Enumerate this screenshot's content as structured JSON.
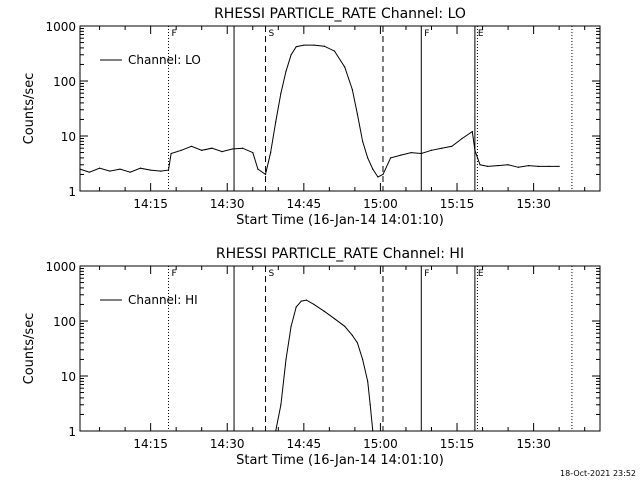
{
  "chart_data": [
    {
      "type": "line",
      "title": "RHESSI PARTICLE_RATE Channel: LO",
      "xlabel": "Start Time (16-Jan-14 14:01:10)",
      "ylabel": "Counts/sec",
      "y_scale": "log",
      "ylim": [
        1,
        1000
      ],
      "xlim": [
        "14:01:10",
        "15:43:00"
      ],
      "x_ticks": [
        "14:15",
        "14:30",
        "14:45",
        "15:00",
        "15:15",
        "15:30"
      ],
      "y_ticks": [
        "1",
        "10",
        "100",
        "1000"
      ],
      "legend": {
        "entries": [
          "Channel: LO"
        ],
        "placement": "top-left"
      },
      "grid": false,
      "markers": [
        {
          "label": "F",
          "time": "14:18:30",
          "style": "dotted"
        },
        {
          "label": "",
          "time": "14:31:20",
          "style": "solid"
        },
        {
          "label": "S",
          "time": "14:37:30",
          "style": "dashed"
        },
        {
          "label": "",
          "time": "15:00:30",
          "style": "dashed"
        },
        {
          "label": "F",
          "time": "15:08:00",
          "style": "solid"
        },
        {
          "label": "E",
          "time": "15:18:30",
          "style": "solid"
        },
        {
          "label": "",
          "time": "15:19:00",
          "style": "dotted"
        },
        {
          "label": "",
          "time": "15:37:30",
          "style": "dotted"
        }
      ],
      "series": [
        {
          "name": "Channel: LO",
          "x": [
            "14:01:10",
            "14:03:00",
            "14:05:00",
            "14:07:00",
            "14:09:00",
            "14:11:00",
            "14:13:00",
            "14:15:00",
            "14:17:00",
            "14:18:30",
            "14:19:00",
            "14:21:00",
            "14:23:00",
            "14:25:00",
            "14:27:00",
            "14:29:00",
            "14:31:00",
            "14:33:00",
            "14:35:00",
            "14:36:00",
            "14:37:30",
            "14:38:30",
            "14:39:30",
            "14:40:30",
            "14:41:30",
            "14:42:30",
            "14:43:30",
            "14:45:00",
            "14:47:00",
            "14:49:00",
            "14:51:00",
            "14:53:00",
            "14:54:30",
            "14:55:30",
            "14:56:30",
            "14:57:30",
            "14:58:30",
            "14:59:30",
            "15:00:30",
            "15:02:00",
            "15:04:00",
            "15:06:00",
            "15:08:00",
            "15:10:00",
            "15:12:00",
            "15:14:00",
            "15:16:00",
            "15:18:00",
            "15:18:30",
            "15:19:30",
            "15:21:00",
            "15:23:00",
            "15:25:00",
            "15:27:00",
            "15:29:00",
            "15:31:00",
            "15:33:00",
            "15:35:00"
          ],
          "y": [
            2.5,
            2.2,
            2.6,
            2.3,
            2.5,
            2.2,
            2.6,
            2.4,
            2.3,
            2.4,
            4.8,
            5.5,
            6.5,
            5.5,
            6.0,
            5.2,
            5.8,
            6.0,
            5.0,
            2.5,
            2.0,
            5.0,
            18,
            60,
            150,
            300,
            420,
            450,
            450,
            430,
            350,
            180,
            70,
            25,
            8,
            4,
            2.5,
            1.8,
            2.0,
            4.0,
            4.5,
            5.0,
            4.8,
            5.5,
            6.0,
            6.5,
            9.0,
            12,
            5.5,
            3.0,
            2.8,
            2.9,
            3.0,
            2.7,
            2.9,
            2.8,
            2.8,
            2.8
          ]
        }
      ]
    },
    {
      "type": "line",
      "title": "RHESSI PARTICLE_RATE Channel: HI",
      "xlabel": "Start Time (16-Jan-14 14:01:10)",
      "ylabel": "Counts/sec",
      "y_scale": "log",
      "ylim": [
        1,
        1000
      ],
      "xlim": [
        "14:01:10",
        "15:43:00"
      ],
      "x_ticks": [
        "14:15",
        "14:30",
        "14:45",
        "15:00",
        "15:15",
        "15:30"
      ],
      "y_ticks": [
        "1",
        "10",
        "100",
        "1000"
      ],
      "legend": {
        "entries": [
          "Channel: HI"
        ],
        "placement": "top-left"
      },
      "grid": false,
      "markers": [
        {
          "label": "F",
          "time": "14:18:30",
          "style": "dotted"
        },
        {
          "label": "",
          "time": "14:31:20",
          "style": "solid"
        },
        {
          "label": "S",
          "time": "14:37:30",
          "style": "dashed"
        },
        {
          "label": "",
          "time": "15:00:30",
          "style": "dashed"
        },
        {
          "label": "F",
          "time": "15:08:00",
          "style": "solid"
        },
        {
          "label": "E",
          "time": "15:18:30",
          "style": "solid"
        },
        {
          "label": "",
          "time": "15:19:00",
          "style": "dotted"
        },
        {
          "label": "",
          "time": "15:37:30",
          "style": "dotted"
        }
      ],
      "series": [
        {
          "name": "Channel: HI",
          "x": [
            "14:39:30",
            "14:40:30",
            "14:41:30",
            "14:42:30",
            "14:43:30",
            "14:44:30",
            "14:45:30",
            "14:47:00",
            "14:49:00",
            "14:51:00",
            "14:53:00",
            "14:54:30",
            "14:55:30",
            "14:56:30",
            "14:57:30",
            "14:58:00",
            "14:58:30"
          ],
          "y": [
            1.0,
            3.0,
            20,
            80,
            180,
            230,
            240,
            200,
            150,
            110,
            80,
            55,
            40,
            20,
            8,
            3,
            1.0
          ]
        }
      ]
    }
  ],
  "footer": {
    "timestamp": "18-Oct-2021 23:52"
  }
}
